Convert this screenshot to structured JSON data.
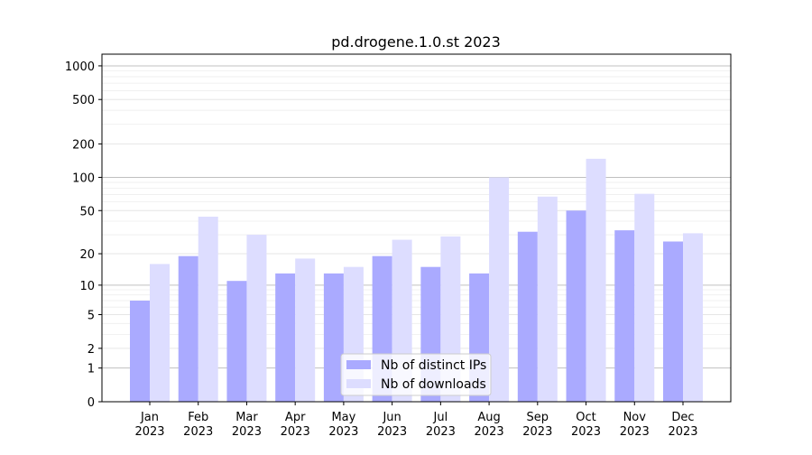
{
  "chart_data": {
    "type": "bar",
    "title": "pd.drogene.1.0.st 2023",
    "xlabel": "",
    "ylabel": "",
    "yscale": "log(1+x)",
    "ylim": [
      0,
      1270
    ],
    "yticks": [
      0,
      1,
      2,
      5,
      10,
      20,
      50,
      100,
      200,
      500,
      1000
    ],
    "categories": [
      "Jan\n2023",
      "Feb\n2023",
      "Mar\n2023",
      "Apr\n2023",
      "May\n2023",
      "Jun\n2023",
      "Jul\n2023",
      "Aug\n2023",
      "Sep\n2023",
      "Oct\n2023",
      "Nov\n2023",
      "Dec\n2023"
    ],
    "series": [
      {
        "name": "Nb of distinct IPs",
        "color": "#aaaaff",
        "values": [
          7,
          19,
          11,
          13,
          13,
          19,
          15,
          13,
          32,
          50,
          33,
          26
        ]
      },
      {
        "name": "Nb of downloads",
        "color": "#ddddff",
        "values": [
          16,
          44,
          30,
          18,
          15,
          27,
          29,
          100,
          67,
          147,
          71,
          31
        ]
      }
    ],
    "grid": true,
    "legend": "bottom-center"
  }
}
